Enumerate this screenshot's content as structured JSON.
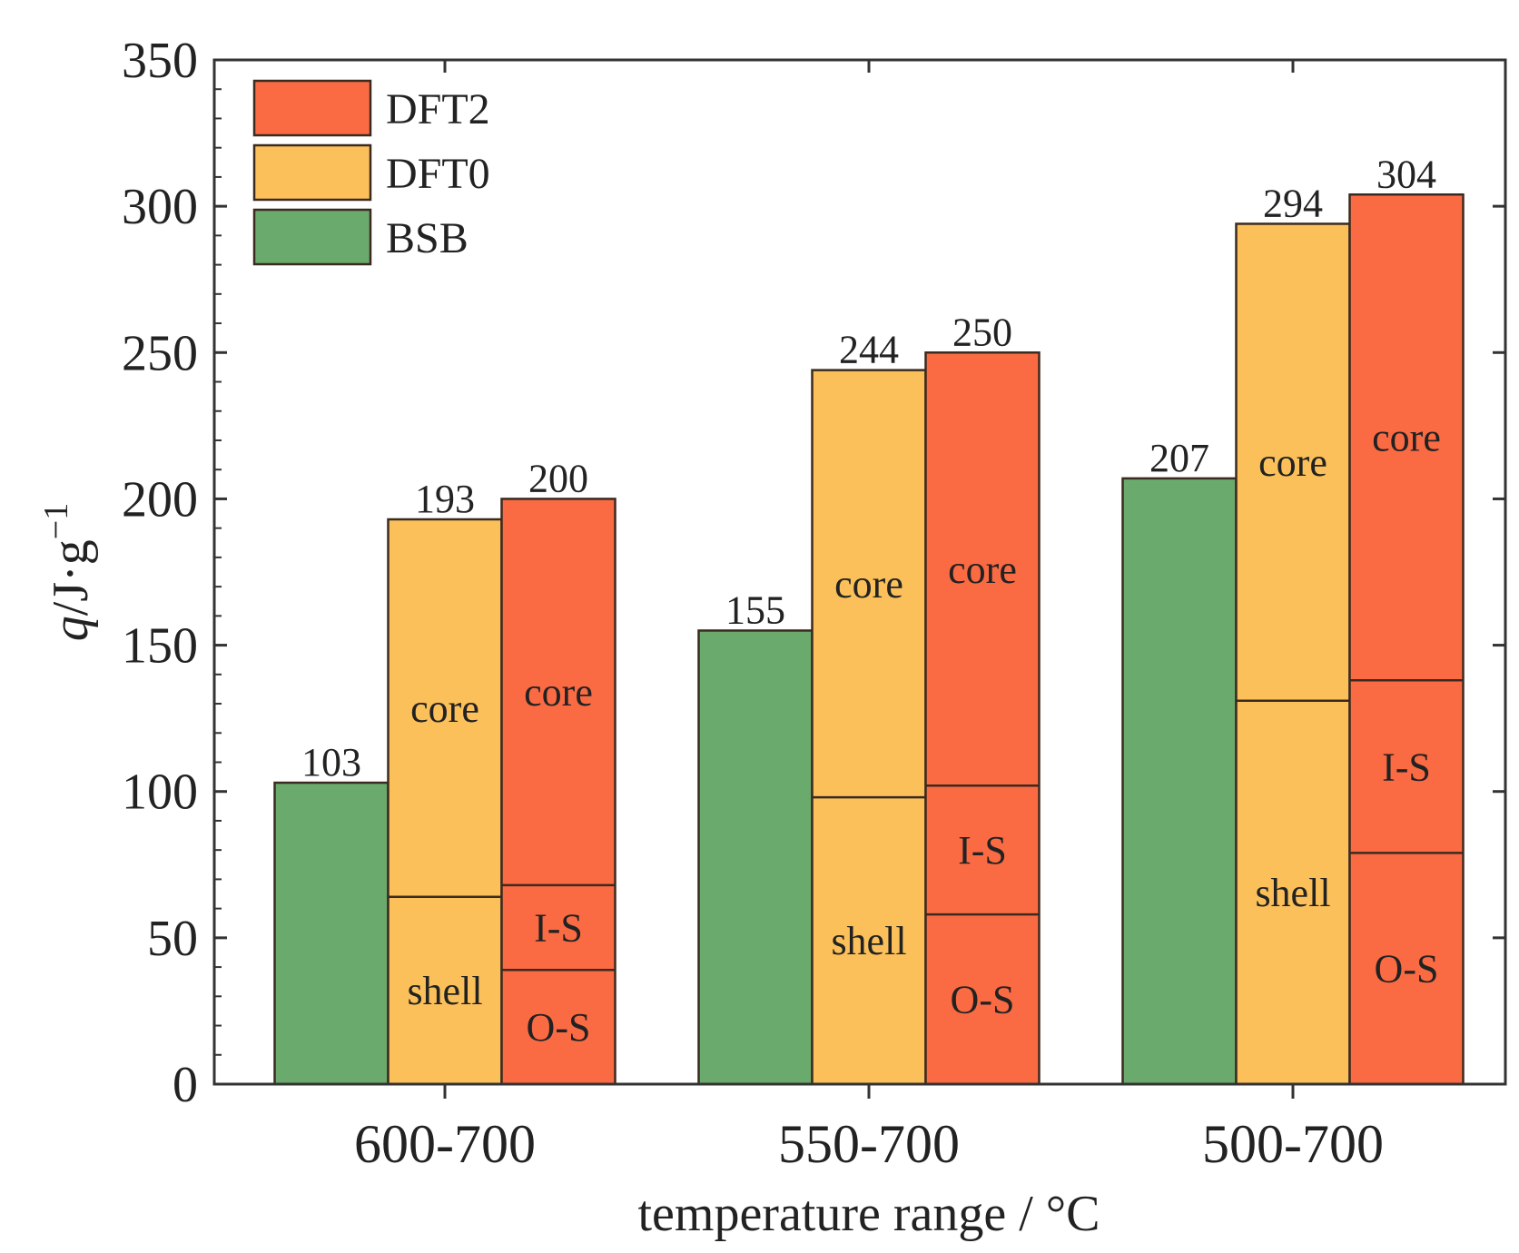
{
  "chart_data": {
    "type": "bar",
    "subtype": "grouped-stacked",
    "xlabel": "temperature range / °C",
    "ylabel": {
      "symbol": "q",
      "unit": "/J·g",
      "exponent": "−1"
    },
    "ylim": [
      0,
      350
    ],
    "yticks": [
      0,
      50,
      100,
      150,
      200,
      250,
      300,
      350
    ],
    "categories": [
      "600-700",
      "550-700",
      "500-700"
    ],
    "legend": {
      "position": "top-left",
      "entries": [
        {
          "name": "DFT2",
          "color": "#fb6b43"
        },
        {
          "name": "DFT0",
          "color": "#fbc05a"
        },
        {
          "name": "BSB",
          "color": "#6aaa6c"
        }
      ]
    },
    "series": [
      {
        "name": "BSB",
        "color": "#6aaa6c",
        "values": [
          103,
          155,
          207
        ],
        "labels": [
          "103",
          "155",
          "207"
        ],
        "segments": [
          [
            {
              "label": "",
              "value": 103
            }
          ],
          [
            {
              "label": "",
              "value": 155
            }
          ],
          [
            {
              "label": "",
              "value": 207
            }
          ]
        ]
      },
      {
        "name": "DFT0",
        "color": "#fbc05a",
        "values": [
          193,
          244,
          294
        ],
        "labels": [
          "193",
          "244",
          "294"
        ],
        "segments": [
          [
            {
              "label": "shell",
              "value": 64
            },
            {
              "label": "core",
              "value": 129
            }
          ],
          [
            {
              "label": "shell",
              "value": 98
            },
            {
              "label": "core",
              "value": 146
            }
          ],
          [
            {
              "label": "shell",
              "value": 131
            },
            {
              "label": "core",
              "value": 163
            }
          ]
        ]
      },
      {
        "name": "DFT2",
        "color": "#fb6b43",
        "values": [
          200,
          250,
          304
        ],
        "labels": [
          "200",
          "250",
          "304"
        ],
        "segments": [
          [
            {
              "label": "O-S",
              "value": 39
            },
            {
              "label": "I-S",
              "value": 29
            },
            {
              "label": "core",
              "value": 132
            }
          ],
          [
            {
              "label": "O-S",
              "value": 58
            },
            {
              "label": "I-S",
              "value": 44
            },
            {
              "label": "core",
              "value": 148
            }
          ],
          [
            {
              "label": "O-S",
              "value": 79
            },
            {
              "label": "I-S",
              "value": 59
            },
            {
              "label": "core",
              "value": 166
            }
          ]
        ]
      }
    ]
  }
}
